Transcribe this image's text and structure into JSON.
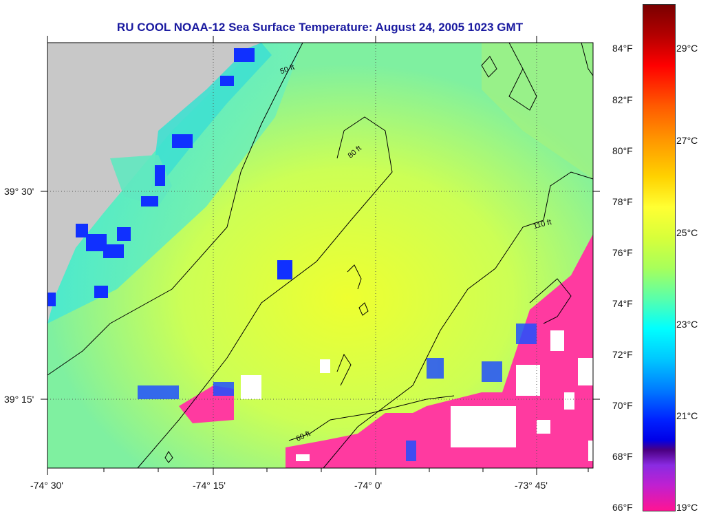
{
  "title": "RU COOL  NOAA-12  Sea Surface Temperature:  August 24, 2005 1023 GMT",
  "x_ticks": [
    "-74° 30'",
    "-74° 15'",
    "-74° 0'",
    "-73° 45'"
  ],
  "y_ticks": [
    "39° 30'",
    "39° 15'"
  ],
  "fahrenheit_ticks": [
    "84°F",
    "82°F",
    "80°F",
    "78°F",
    "76°F",
    "74°F",
    "72°F",
    "70°F",
    "68°F",
    "66°F"
  ],
  "celsius_ticks": [
    "29°C",
    "27°C",
    "25°C",
    "23°C",
    "21°C",
    "19°C"
  ],
  "contour_labels": [
    "50 ft",
    "60 ft",
    "80 ft",
    "110 ft"
  ],
  "colors": {
    "land": "#c8c8c8",
    "warm": "#e8ff40",
    "cool": "#3fe8c8",
    "cold": "#ff3aa0",
    "cloud": "#ffffff"
  }
}
